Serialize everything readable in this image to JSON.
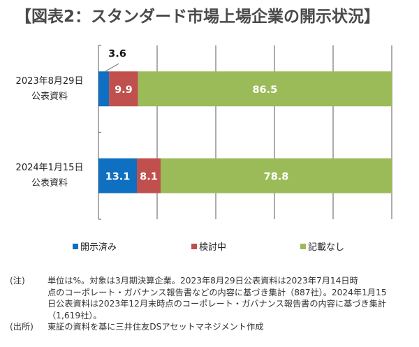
{
  "title": "【図表2：スタンダード市場上場企業の開示状況】",
  "chart_data": {
    "type": "bar",
    "orientation": "horizontal",
    "stacked": true,
    "title": "【図表2：スタンダード市場上場企業の開示状況】",
    "xlabel": "",
    "ylabel": "",
    "xlim": [
      0,
      100
    ],
    "grid": true,
    "legend_position": "bottom",
    "categories": [
      {
        "line1": "2023年8月29日",
        "line2": "公表資料"
      },
      {
        "line1": "2024年1月15日",
        "line2": "公表資料"
      }
    ],
    "series": [
      {
        "name": "開示済み",
        "color": "#0F6FC0",
        "values": [
          3.6,
          13.1
        ],
        "labels": [
          "3.6",
          "13.1"
        ]
      },
      {
        "name": "検討中",
        "color": "#C0504D",
        "values": [
          9.9,
          8.1
        ],
        "labels": [
          "9.9",
          "8.1"
        ]
      },
      {
        "name": "記載なし",
        "color": "#9BBB59",
        "values": [
          86.5,
          78.8
        ],
        "labels": [
          "86.5",
          "78.8"
        ]
      }
    ]
  },
  "legend": [
    {
      "label": "開示済み",
      "color": "#0F6FC0"
    },
    {
      "label": "検討中",
      "color": "#C0504D"
    },
    {
      "label": "記載なし",
      "color": "#9BBB59"
    }
  ],
  "notes": [
    {
      "head": "(注)",
      "lines": [
        "単位は%。対象は3月期決算企業。2023年8月29日公表資料は2023年7月14日時",
        "点のコーポレート・ガバナンス報告書などの内容に基づき集計（887社）。2024年1月15",
        "日公表資料は2023年12月末時点のコーポレート・ガバナンス報告書の内容に基づき集計",
        "（1,619社）。"
      ]
    },
    {
      "head": "(出所)",
      "lines": [
        "東証の資料を基に三井住友DSアセットマネジメント作成"
      ]
    }
  ]
}
